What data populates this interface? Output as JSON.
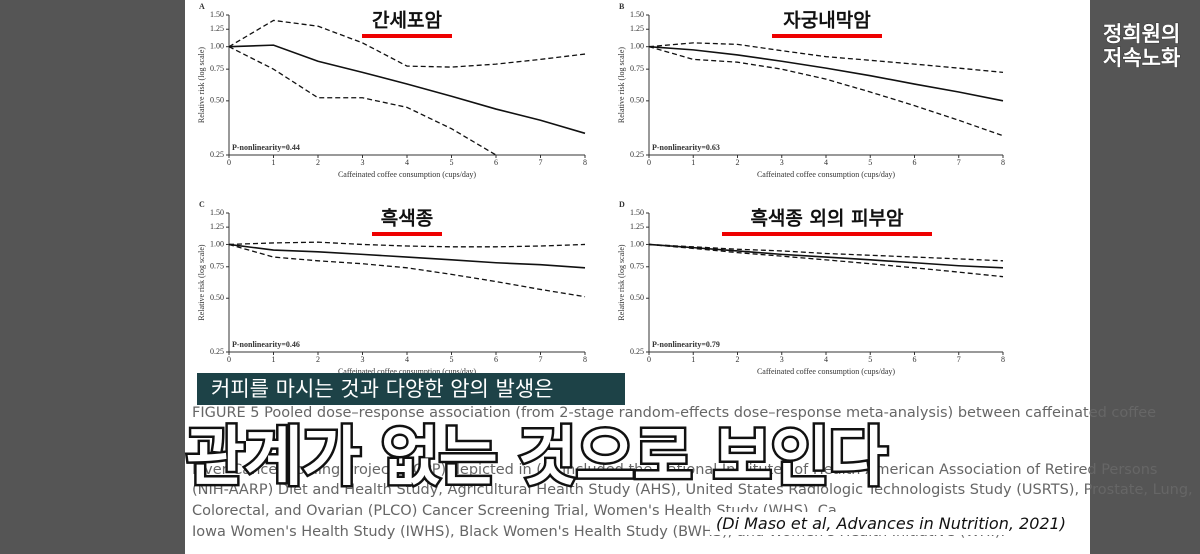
{
  "chart_data": [
    {
      "type": "line",
      "panel": "A",
      "title": "간세포암",
      "annotation": "P-nonlinearity=0.44",
      "xlabel": "Caffeinated coffee consumption (cups/day)",
      "ylabel": "Relative risk (log scale)",
      "log_scale": true,
      "x": [
        0,
        1,
        2,
        3,
        4,
        5,
        6,
        7,
        8
      ],
      "xlim": [
        0,
        8
      ],
      "xticks": [
        0,
        1,
        2,
        3,
        4,
        5,
        6,
        7,
        8
      ],
      "ylim": [
        0.25,
        1.5
      ],
      "yticks": [
        0.25,
        {
          "value": 0.5,
          "label": "0.50"
        },
        0.75,
        {
          "value": 1,
          "label": "1.00"
        },
        1.25,
        {
          "value": 1.5,
          "label": "1.50"
        }
      ],
      "series": [
        {
          "color": "#111",
          "dashed": false,
          "values": [
            1.0,
            1.02,
            0.83,
            0.72,
            0.62,
            0.53,
            0.45,
            0.39,
            0.33
          ]
        },
        {
          "color": "#111",
          "dashed": true,
          "values": [
            1.0,
            1.4,
            1.3,
            1.05,
            0.78,
            0.77,
            0.8,
            0.85,
            0.91
          ]
        },
        {
          "color": "#111",
          "dashed": true,
          "values": [
            1.0,
            0.75,
            0.52,
            0.52,
            0.46,
            0.35,
            0.25,
            null,
            null
          ]
        }
      ]
    },
    {
      "type": "line",
      "panel": "B",
      "title": "자궁내막암",
      "annotation": "P-nonlinearity=0.63",
      "xlabel": "Caffeinated coffee consumption (cups/day)",
      "ylabel": "Relative risk (log scale)",
      "log_scale": true,
      "x": [
        0,
        1,
        2,
        3,
        4,
        5,
        6,
        7,
        8
      ],
      "xlim": [
        0,
        8
      ],
      "xticks": [
        0,
        1,
        2,
        3,
        4,
        5,
        6,
        7,
        8
      ],
      "ylim": [
        0.25,
        1.5
      ],
      "yticks": [
        0.25,
        {
          "value": 0.5,
          "label": "0.50"
        },
        0.75,
        {
          "value": 1,
          "label": "1.00"
        },
        1.25,
        {
          "value": 1.5,
          "label": "1.50"
        }
      ],
      "series": [
        {
          "color": "#111",
          "dashed": false,
          "values": [
            1.0,
            0.96,
            0.9,
            0.83,
            0.76,
            0.69,
            0.62,
            0.56,
            0.5
          ]
        },
        {
          "color": "#111",
          "dashed": true,
          "values": [
            1.0,
            1.05,
            1.03,
            0.95,
            0.88,
            0.84,
            0.8,
            0.76,
            0.72
          ]
        },
        {
          "color": "#111",
          "dashed": true,
          "values": [
            1.0,
            0.85,
            0.82,
            0.75,
            0.66,
            0.56,
            0.47,
            0.39,
            0.32
          ]
        }
      ]
    },
    {
      "type": "line",
      "panel": "C",
      "title": "흑색종",
      "annotation": "P-nonlinearity=0.46",
      "xlabel": "Caffeinated coffee consumption (cups/day)",
      "ylabel": "Relative risk (log scale)",
      "log_scale": true,
      "x": [
        0,
        1,
        2,
        3,
        4,
        5,
        6,
        7,
        8
      ],
      "xlim": [
        0,
        8
      ],
      "xticks": [
        0,
        1,
        2,
        3,
        4,
        5,
        6,
        7,
        8
      ],
      "ylim": [
        0.25,
        1.5
      ],
      "yticks": [
        0.25,
        {
          "value": 0.5,
          "label": "0.50"
        },
        0.75,
        {
          "value": 1,
          "label": "1.00"
        },
        1.25,
        {
          "value": 1.5,
          "label": "1.50"
        }
      ],
      "series": [
        {
          "color": "#111",
          "dashed": false,
          "values": [
            1.0,
            0.93,
            0.91,
            0.88,
            0.85,
            0.82,
            0.79,
            0.77,
            0.74
          ]
        },
        {
          "color": "#111",
          "dashed": true,
          "values": [
            1.0,
            1.02,
            1.03,
            1.0,
            0.98,
            0.97,
            0.97,
            0.98,
            1.0
          ]
        },
        {
          "color": "#111",
          "dashed": true,
          "values": [
            1.0,
            0.85,
            0.81,
            0.78,
            0.74,
            0.68,
            0.62,
            0.56,
            0.51
          ]
        }
      ]
    },
    {
      "type": "line",
      "panel": "D",
      "title": "흑색종 외의 피부암",
      "annotation": "P-nonlinearity=0.79",
      "xlabel": "Caffeinated coffee consumption (cups/day)",
      "ylabel": "Relative risk (log scale)",
      "log_scale": true,
      "x": [
        0,
        1,
        2,
        3,
        4,
        5,
        6,
        7,
        8
      ],
      "xlim": [
        0,
        8
      ],
      "xticks": [
        0,
        1,
        2,
        3,
        4,
        5,
        6,
        7,
        8
      ],
      "ylim": [
        0.25,
        1.5
      ],
      "yticks": [
        0.25,
        {
          "value": 0.5,
          "label": "0.50"
        },
        0.75,
        {
          "value": 1,
          "label": "1.00"
        },
        1.25,
        {
          "value": 1.5,
          "label": "1.50"
        }
      ],
      "series": [
        {
          "color": "#111",
          "dashed": false,
          "values": [
            1.0,
            0.96,
            0.92,
            0.88,
            0.85,
            0.82,
            0.79,
            0.76,
            0.74
          ]
        },
        {
          "color": "#111",
          "dashed": true,
          "values": [
            1.0,
            0.97,
            0.94,
            0.92,
            0.89,
            0.87,
            0.85,
            0.83,
            0.81
          ]
        },
        {
          "color": "#111",
          "dashed": true,
          "values": [
            1.0,
            0.95,
            0.9,
            0.86,
            0.82,
            0.78,
            0.74,
            0.7,
            0.66
          ]
        }
      ]
    }
  ],
  "caption_lines": [
    "FIGURE 5   Pooled dose–response association (from 2-stage random-effects dose–response meta-analysis) between caffeinated coffee",
    "Liver Cancer Pooling Project (LCPP) depicted in (A) included the National Institutes of Health-American Association of Retired Persons",
    "(NIH-AARP) Diet and Health Study, Agricultural Health Study (AHS), United States Radiologic Technologists Study (USRTS), Prostate, Lung,",
    "Colorectal, and Ovarian (PLCO) Cancer Screening Trial, Women's Health Study (WHS), Ca",
    "Iowa Women's Health Study (IWHS), Black Women's Health Study (BWHS), and Women's Health Initiative (WHI)."
  ],
  "subtitle": "커피를 마시는 것과 다양한 암의 발생은",
  "headline": "관계가 없는 것으로 보인다",
  "citation": "(Di Maso et al, Advances in Nutrition, 2021)",
  "logo": [
    "정희원의",
    "저속노화"
  ]
}
